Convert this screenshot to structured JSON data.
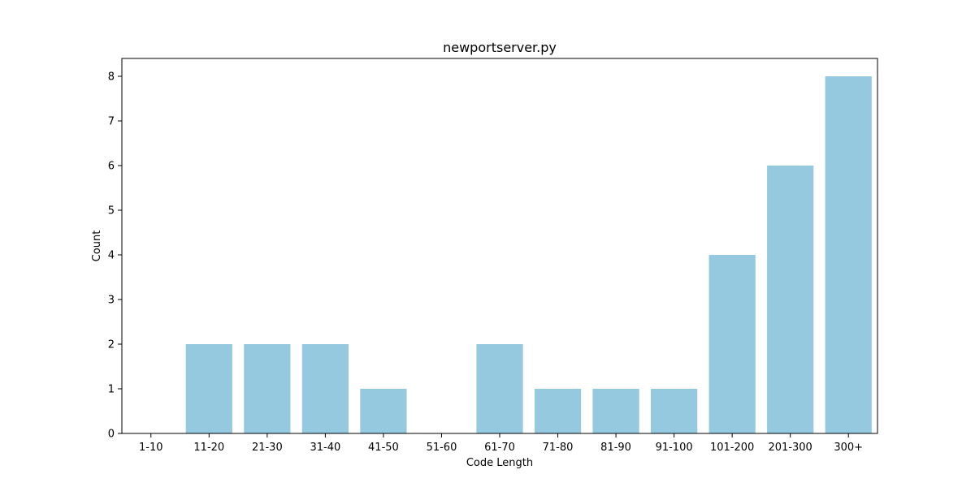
{
  "chart_data": {
    "type": "bar",
    "title": "newportserver.py",
    "xlabel": "Code Length",
    "ylabel": "Count",
    "categories": [
      "1-10",
      "11-20",
      "21-30",
      "31-40",
      "41-50",
      "51-60",
      "61-70",
      "71-80",
      "81-90",
      "91-100",
      "101-200",
      "201-300",
      "300+"
    ],
    "values": [
      0,
      2,
      2,
      2,
      1,
      0,
      2,
      1,
      1,
      1,
      4,
      6,
      8
    ],
    "yticks": [
      0,
      1,
      2,
      3,
      4,
      5,
      6,
      7,
      8
    ],
    "ylim": [
      0,
      8.4
    ],
    "bar_color": "#95c9df",
    "grid": false,
    "legend": "none"
  }
}
